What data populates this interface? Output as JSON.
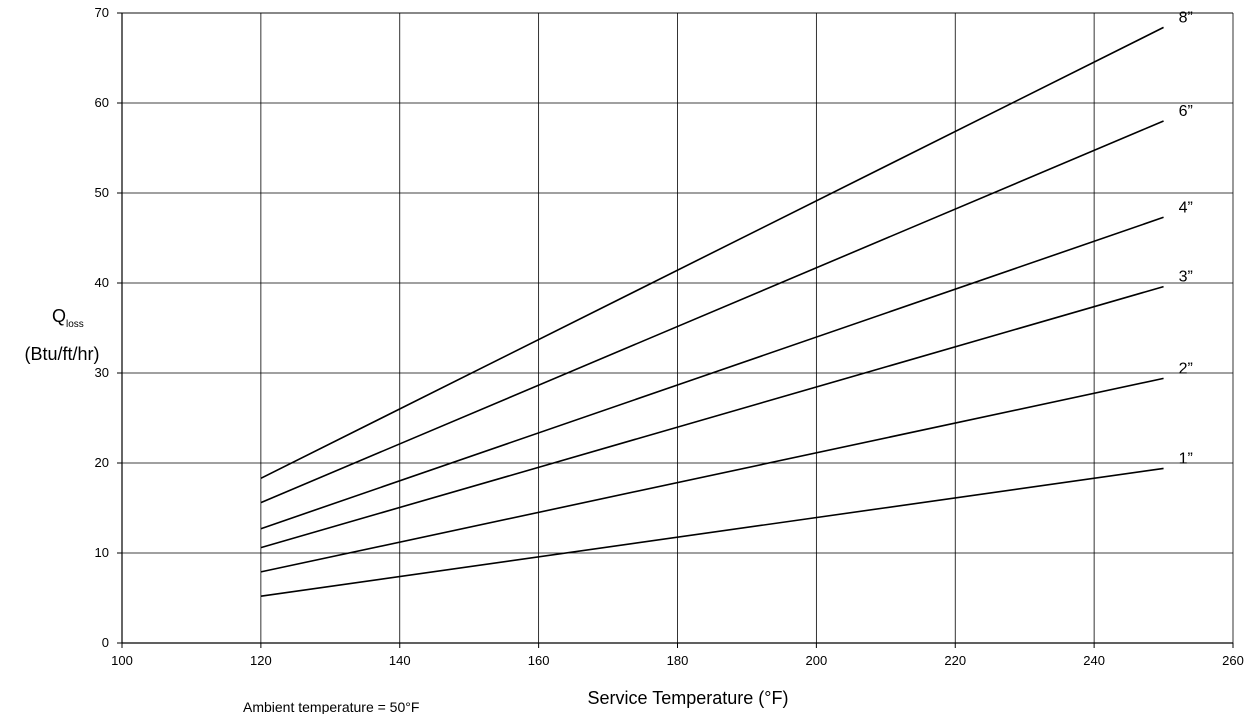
{
  "chart_data": {
    "type": "line",
    "title": "",
    "xlabel": "Service Temperature (°F)",
    "ylabel_main": "Q",
    "ylabel_sub": "loss",
    "ylabel_units": "(Btu/ft/hr)",
    "note": "Ambient temperature = 50°F",
    "xlim": [
      100,
      260
    ],
    "ylim": [
      0,
      70
    ],
    "xticks": [
      100,
      120,
      140,
      160,
      180,
      200,
      220,
      240,
      260
    ],
    "yticks": [
      0,
      10,
      20,
      30,
      40,
      50,
      60,
      70
    ],
    "grid": true,
    "legend": "none",
    "line_color": "#000000",
    "series": [
      {
        "name": "1”",
        "points": [
          [
            120,
            5.2
          ],
          [
            250,
            19.4
          ]
        ]
      },
      {
        "name": "2”",
        "points": [
          [
            120,
            7.9
          ],
          [
            250,
            29.4
          ]
        ]
      },
      {
        "name": "3”",
        "points": [
          [
            120,
            10.6
          ],
          [
            250,
            39.6
          ]
        ]
      },
      {
        "name": "4”",
        "points": [
          [
            120,
            12.7
          ],
          [
            250,
            47.3
          ]
        ]
      },
      {
        "name": "6”",
        "points": [
          [
            120,
            15.6
          ],
          [
            250,
            58.0
          ]
        ]
      },
      {
        "name": "8”",
        "points": [
          [
            120,
            18.3
          ],
          [
            250,
            68.4
          ]
        ]
      }
    ]
  }
}
